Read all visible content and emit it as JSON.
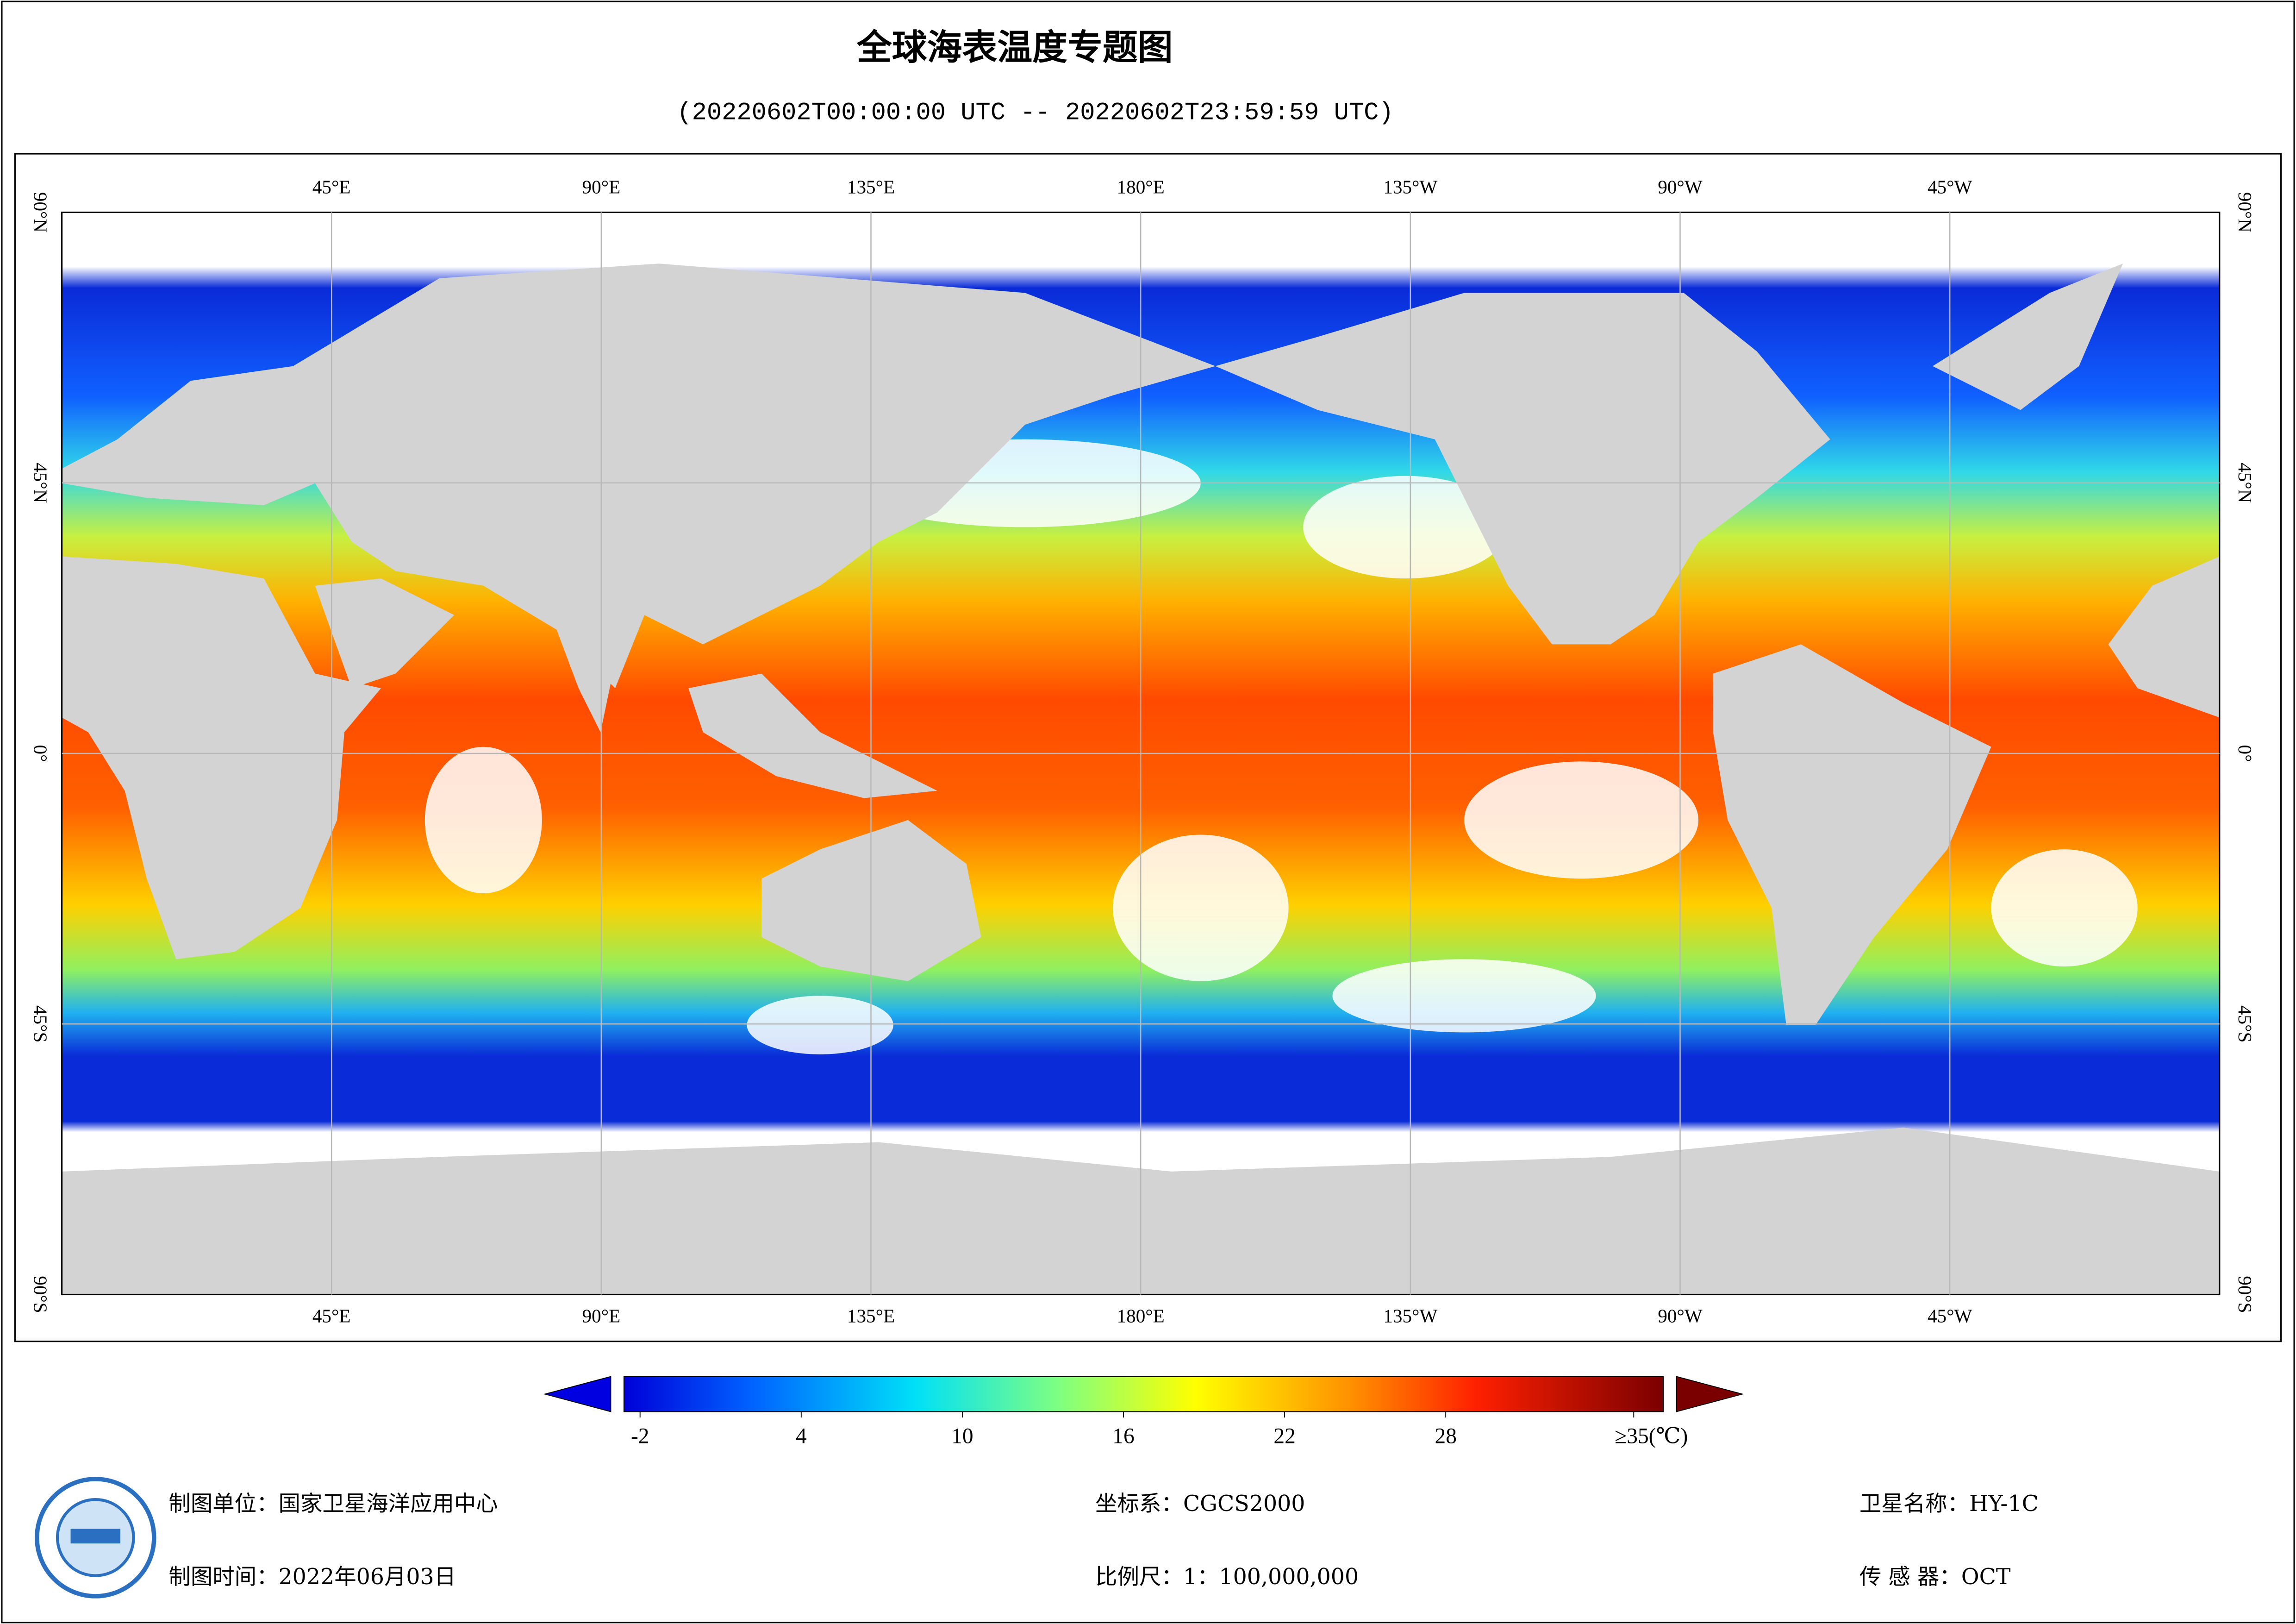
{
  "title": "全球海表温度专题图",
  "subtitle": "(20220602T00:00:00 UTC -- 20220602T23:59:59 UTC)",
  "map": {
    "lon_labels": [
      "45°E",
      "90°E",
      "135°E",
      "180°E",
      "135°W",
      "90°W",
      "45°W"
    ],
    "lat_labels": [
      "90°N",
      "45°N",
      "0°",
      "45°S",
      "90°S"
    ]
  },
  "colorbar": {
    "range": [
      -2.6,
      36.1
    ],
    "ticks": [
      -2,
      4,
      10,
      16,
      22,
      28
    ],
    "max": 35,
    "max_label": "≥35(℃)"
  },
  "footer": {
    "unit": "制图单位：国家卫星海洋应用中心",
    "date": "制图时间：2022年06月03日",
    "crs": "坐标系：CGCS2000",
    "scale": "比例尺：1：100,000,000",
    "satellite": "卫星名称：HY-1C",
    "sensor": "传 感 器：OCT"
  }
}
